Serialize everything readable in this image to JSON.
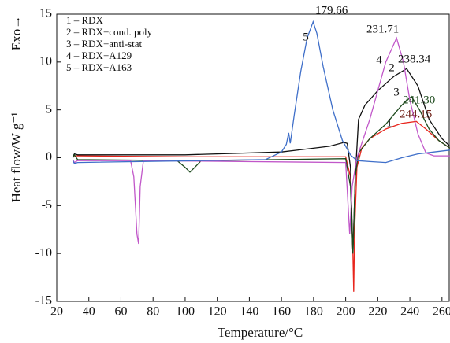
{
  "chart_data": {
    "type": "line",
    "y_label": "Heat flow/W g⁻¹",
    "x_label": "Temperature/°C",
    "exo_label": "Exo→",
    "xlim": [
      20,
      265
    ],
    "ylim": [
      -15,
      15
    ],
    "xticks": [
      20,
      40,
      60,
      80,
      100,
      120,
      140,
      160,
      180,
      200,
      220,
      240,
      260
    ],
    "yticks": [
      -15,
      -10,
      -5,
      0,
      5,
      10,
      15
    ],
    "legend": "upper left",
    "series": [
      {
        "name": "1 – RDX",
        "color": "#e8251c",
        "x": [
          30,
          31,
          33,
          100,
          200,
          203,
          204.5,
          205,
          205.5,
          207,
          210,
          215,
          225,
          235,
          244,
          250,
          258,
          265
        ],
        "values": [
          0.1,
          0.2,
          0.2,
          0.1,
          0.1,
          -2,
          -10,
          -14,
          -8,
          -1,
          1,
          2,
          3,
          3.6,
          3.8,
          3,
          1.8,
          1
        ]
      },
      {
        "name": "2 – RDX+cond. poly",
        "color": "#111111",
        "x": [
          30,
          31,
          33,
          100,
          160,
          190,
          199,
          201,
          203,
          204.5,
          206,
          208,
          212,
          220,
          230,
          238,
          245,
          252,
          260,
          265
        ],
        "values": [
          0.1,
          0.4,
          0.3,
          0.3,
          0.6,
          1.2,
          1.6,
          1.5,
          -1,
          -10,
          -2,
          4,
          5.5,
          7,
          8.5,
          9.3,
          7.5,
          4,
          2,
          1.2
        ]
      },
      {
        "name": "3 – RDX+anti-stat",
        "color": "#1d4a1d",
        "x": [
          30,
          31,
          33,
          95,
          100,
          103,
          106,
          110,
          200,
          203,
          204.5,
          206,
          208,
          215,
          225,
          235,
          241,
          246,
          252,
          258,
          265
        ],
        "values": [
          0,
          0.3,
          -0.2,
          -0.3,
          -1,
          -1.5,
          -1,
          -0.3,
          -0.1,
          -3,
          -10,
          -2,
          0.5,
          2,
          3.5,
          5.5,
          6.4,
          5,
          3,
          1.8,
          1
        ]
      },
      {
        "name": "4 – RDX+A129",
        "color": "#c157c9",
        "x": [
          30,
          31,
          33,
          66,
          68,
          70,
          71,
          72,
          74,
          200,
          201.5,
          202.5,
          204,
          207,
          215,
          225,
          231.7,
          236,
          240,
          245,
          250,
          255,
          265
        ],
        "values": [
          -0.2,
          -0.5,
          -0.3,
          -0.3,
          -2,
          -8,
          -9,
          -3,
          -0.3,
          -0.5,
          -5,
          -8,
          -3,
          0,
          4,
          10,
          12.5,
          10,
          6,
          2.5,
          0.5,
          0.2,
          0.2
        ]
      },
      {
        "name": "5 – RDX+A163",
        "color": "#3f6fc9",
        "x": [
          30,
          31,
          33,
          150,
          160,
          163,
          164.5,
          165.5,
          168,
          172,
          176,
          179.7,
          182,
          186,
          192,
          198,
          203,
          207,
          215,
          225,
          235,
          245,
          255,
          265
        ],
        "values": [
          -0.3,
          -0.6,
          -0.5,
          -0.2,
          0.6,
          1.4,
          2.6,
          1.5,
          4.5,
          9,
          12.5,
          14.2,
          13,
          9.5,
          5,
          1.8,
          0.3,
          -0.3,
          -0.4,
          -0.5,
          0,
          0.4,
          0.6,
          0.8
        ]
      }
    ],
    "annotations": [
      "179.66",
      "231.71",
      "238.34",
      "241.30",
      "244.15",
      "1",
      "2",
      "3",
      "4",
      "5"
    ]
  }
}
